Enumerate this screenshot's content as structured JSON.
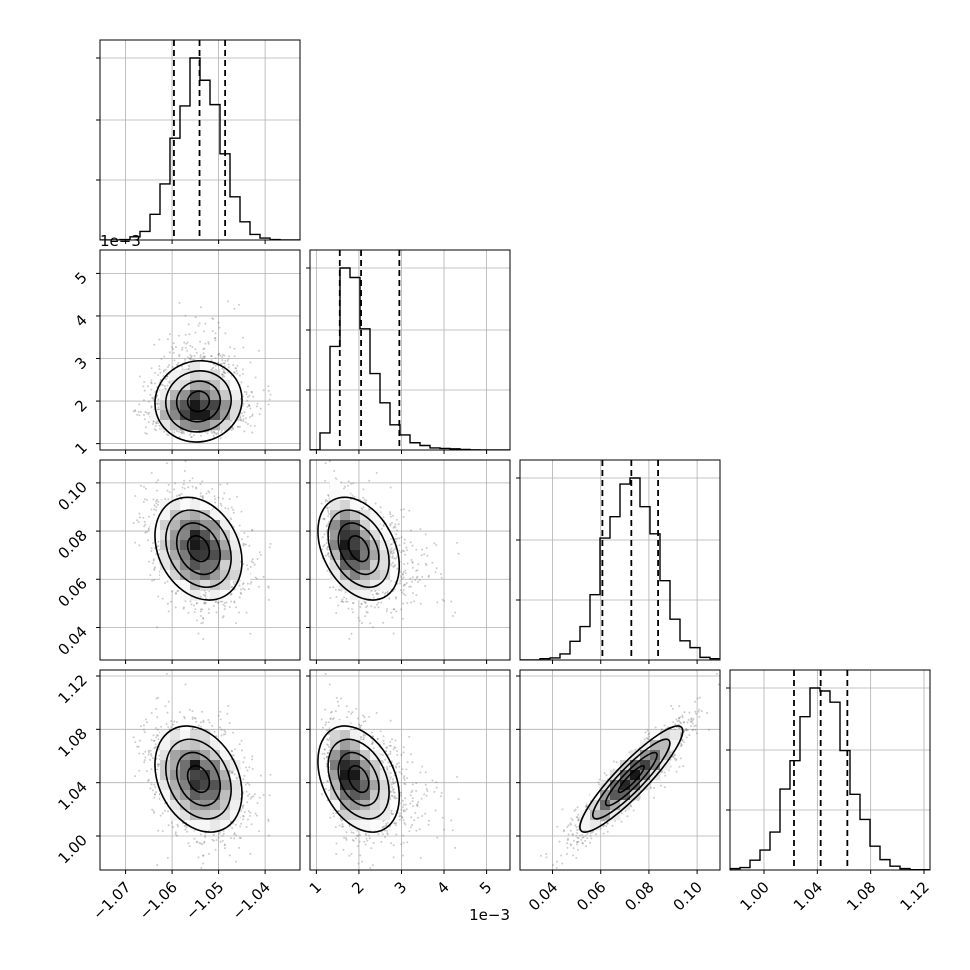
{
  "chart_data": {
    "type": "corner",
    "style": {
      "foreground": "#000000",
      "grid": "#b0b0b0",
      "cloud": "#6e6e6e",
      "background": "#ffffff"
    },
    "parameters": [
      {
        "ticks": [
          -1.07,
          -1.06,
          -1.05,
          -1.04
        ],
        "tick_labels": [
          "−1.07",
          "−1.06",
          "−1.05",
          "−1.04"
        ],
        "range": [
          -1.0755,
          -1.0325
        ],
        "offset_label": "",
        "mean": -1.0542,
        "std": 0.0047,
        "skew": 0,
        "quantiles": [
          -1.0596,
          -1.0541,
          -1.0486
        ],
        "hist_max_tick": 0.95
      },
      {
        "ticks": [
          1,
          2,
          3,
          4,
          5
        ],
        "tick_labels": [
          "1",
          "2",
          "3",
          "4",
          "5"
        ],
        "range": [
          0.85,
          5.55
        ],
        "offset_label": "1e−3",
        "mean": 2.0,
        "std": 0.85,
        "skew": 1,
        "quantiles": [
          1.55,
          2.05,
          2.95
        ],
        "hist_max_tick": 0.95
      },
      {
        "ticks": [
          0.04,
          0.06,
          0.08,
          0.1
        ],
        "tick_labels": [
          "0.04",
          "0.06",
          "0.08",
          "0.10"
        ],
        "range": [
          0.0265,
          0.1095
        ],
        "offset_label": "",
        "mean": 0.0727,
        "std": 0.0105,
        "skew": 0,
        "quantiles": [
          0.0607,
          0.0727,
          0.0838
        ],
        "hist_max_tick": 0.95
      },
      {
        "ticks": [
          1.0,
          1.04,
          1.08,
          1.12
        ],
        "tick_labels": [
          "1.00",
          "1.04",
          "1.08",
          "1.12"
        ],
        "range": [
          0.9745,
          1.1245
        ],
        "offset_label": "",
        "mean": 1.0425,
        "std": 0.0195,
        "skew": 0,
        "quantiles": [
          1.0225,
          1.0425,
          1.0625
        ],
        "hist_max_tick": 0.95
      }
    ],
    "correlations": [
      {
        "i": 1,
        "j": 0,
        "rho": 0.05
      },
      {
        "i": 2,
        "j": 0,
        "rho": -0.25
      },
      {
        "i": 2,
        "j": 1,
        "rho": -0.35
      },
      {
        "i": 3,
        "j": 0,
        "rho": -0.25
      },
      {
        "i": 3,
        "j": 1,
        "rho": -0.2
      },
      {
        "i": 3,
        "j": 2,
        "rho": 0.9
      }
    ],
    "diagonal": "histogram",
    "quantile_lines": [
      0.16,
      0.5,
      0.84
    ],
    "contour_levels": 4,
    "grid": true,
    "legend": false
  }
}
